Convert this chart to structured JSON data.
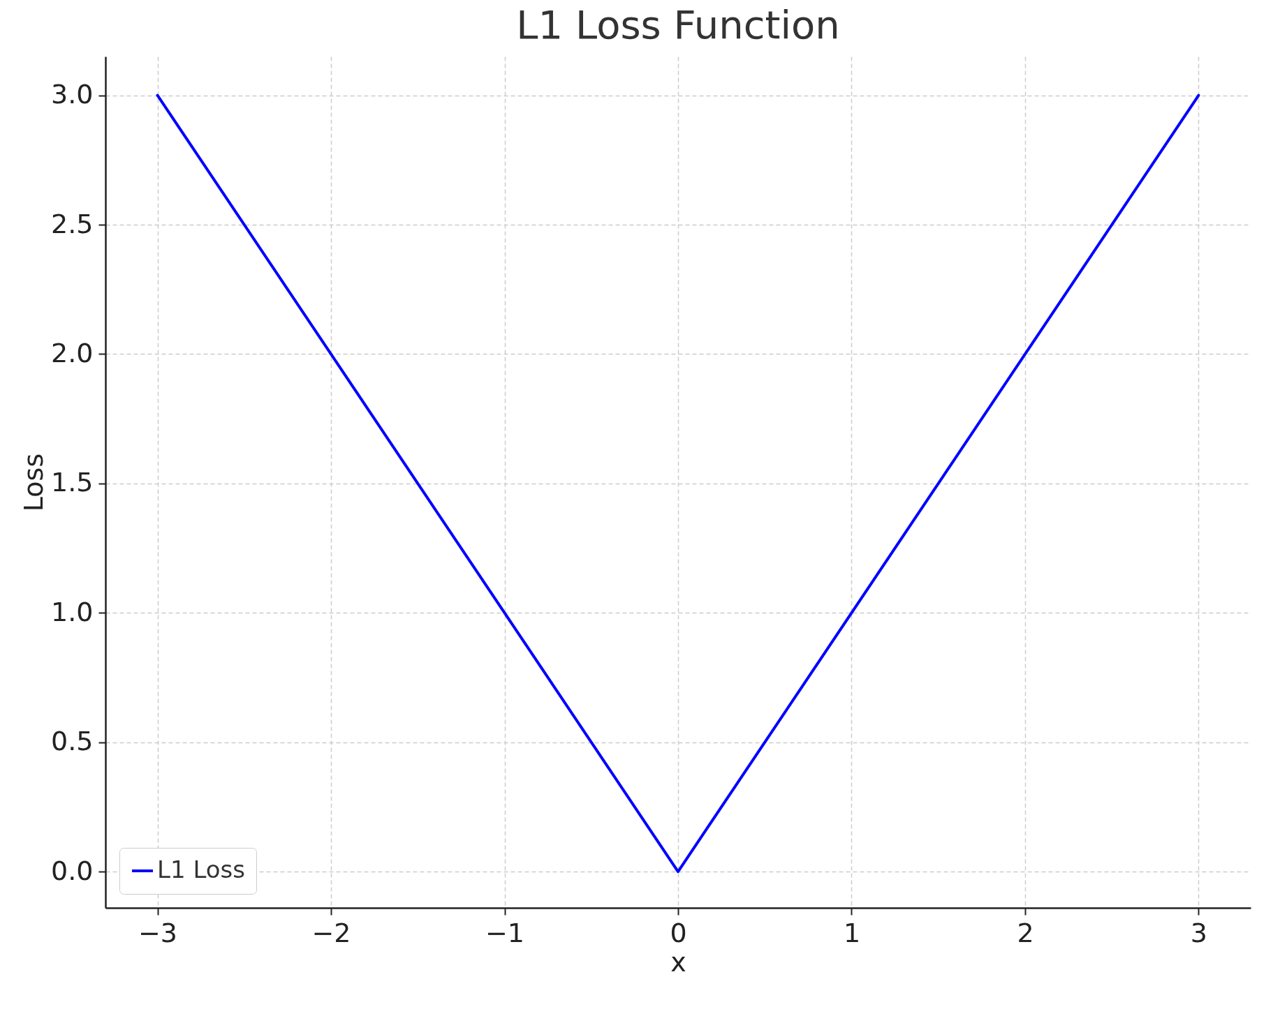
{
  "chart_data": {
    "type": "line",
    "title": "L1 Loss Function",
    "xlabel": "x",
    "ylabel": "Loss",
    "x": [
      -3,
      0,
      3
    ],
    "series": [
      {
        "name": "L1 Loss",
        "color": "#0000ff",
        "values": [
          3,
          0,
          3
        ]
      }
    ],
    "xlim": [
      -3.3,
      3.3
    ],
    "ylim": [
      -0.14,
      3.15
    ],
    "xticks": [
      {
        "value": -3,
        "label": "−3"
      },
      {
        "value": -2,
        "label": "−2"
      },
      {
        "value": -1,
        "label": "−1"
      },
      0,
      1,
      2,
      3
    ],
    "yticks": [
      {
        "value": 0,
        "label": "0.0"
      },
      {
        "value": 0.5,
        "label": "0.5"
      },
      {
        "value": 1,
        "label": "1.0"
      },
      {
        "value": 1.5,
        "label": "1.5"
      },
      {
        "value": 2,
        "label": "2.0"
      },
      {
        "value": 2.5,
        "label": "2.5"
      },
      {
        "value": 3,
        "label": "3.0"
      }
    ],
    "grid": true,
    "legend": "bottom left",
    "line_style": "solid",
    "marker": "none"
  }
}
